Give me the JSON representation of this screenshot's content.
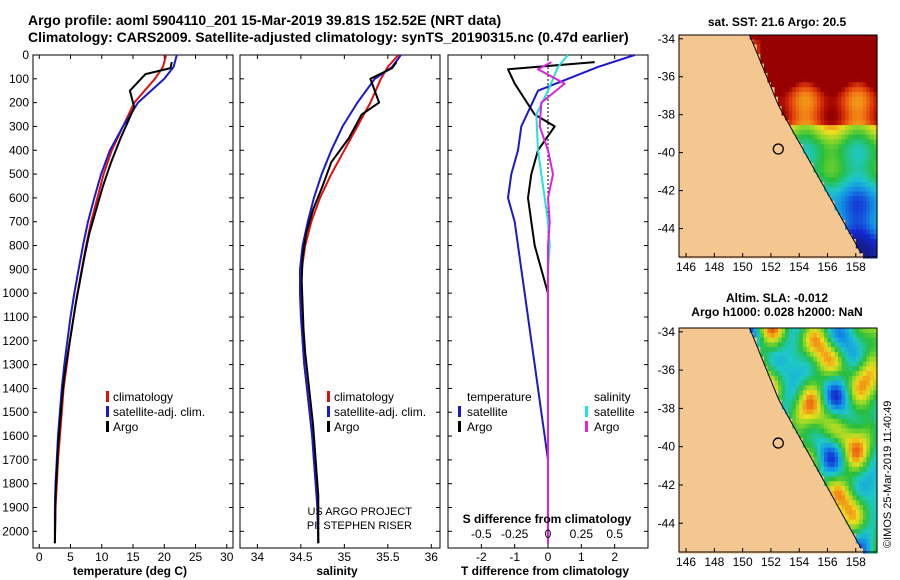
{
  "header": {
    "line1": "Argo profile: aoml 5904110_201 15-Mar-2019 39.81S 152.52E (NRT data)",
    "line2": "Climatology: CARS2009. Satellite-adjusted climatology: synTS_20190315.nc (0.47d earlier)"
  },
  "colors": {
    "climatology": "#e01010",
    "satellite": "#1a1acc",
    "argo": "#000000",
    "sat_salinity": "#22e0e0",
    "clim_salinity": "#dd22dd"
  },
  "chart_data": [
    {
      "type": "line",
      "id": "temperature",
      "xlabel": "temperature (deg C)",
      "ylabel": "",
      "xlim": [
        -1,
        31
      ],
      "ylim": [
        2070,
        0
      ],
      "xticks": [
        0,
        5,
        10,
        15,
        20,
        25,
        30
      ],
      "yticks": [
        0,
        100,
        200,
        300,
        400,
        500,
        600,
        700,
        800,
        900,
        1000,
        1100,
        1200,
        1300,
        1400,
        1500,
        1600,
        1700,
        1800,
        1900,
        2000
      ],
      "legend": [
        "climatology",
        "satellite-adj. clim.",
        "Argo"
      ],
      "series": [
        {
          "name": "climatology",
          "color": "#e01010",
          "x": [
            20.3,
            19.8,
            18.5,
            15.2,
            13.4,
            11.6,
            10.3,
            9.3,
            8.3,
            7.5,
            6.8,
            6.1,
            5.5,
            4.9,
            4.4,
            3.9,
            3.6,
            3.3,
            3.0,
            2.8,
            2.6,
            2.5
          ],
          "y": [
            0,
            50,
            100,
            200,
            300,
            400,
            500,
            600,
            700,
            800,
            900,
            1000,
            1100,
            1200,
            1300,
            1400,
            1500,
            1600,
            1700,
            1800,
            1900,
            2050
          ]
        },
        {
          "name": "satellite-adj. clim.",
          "color": "#1a1acc",
          "x": [
            22.0,
            21.5,
            20.0,
            15.8,
            13.4,
            11.3,
            9.9,
            8.8,
            7.8,
            7.0,
            6.3,
            5.6,
            5.0,
            4.5,
            4.0,
            3.6,
            3.3,
            3.0,
            2.8,
            2.6,
            2.5,
            2.5
          ],
          "y": [
            0,
            50,
            100,
            200,
            300,
            400,
            500,
            600,
            700,
            800,
            900,
            1000,
            1100,
            1200,
            1300,
            1400,
            1500,
            1600,
            1700,
            1800,
            1900,
            2050
          ]
        },
        {
          "name": "Argo",
          "color": "#000000",
          "x": [
            21.2,
            21.0,
            17.0,
            14.5,
            15.2,
            13.0,
            11.5,
            10.2,
            9.1,
            8.0,
            7.2,
            6.5,
            5.8,
            5.2,
            4.6,
            4.0,
            3.6,
            3.3,
            3.0,
            2.8,
            2.6,
            2.5
          ],
          "y": [
            30,
            55,
            80,
            150,
            220,
            350,
            450,
            550,
            650,
            750,
            850,
            950,
            1050,
            1150,
            1250,
            1350,
            1450,
            1550,
            1650,
            1750,
            1850,
            2050
          ]
        }
      ]
    },
    {
      "type": "line",
      "id": "salinity",
      "xlabel": "salinity",
      "ylabel": "",
      "xlim": [
        33.8,
        36.1
      ],
      "ylim": [
        2070,
        0
      ],
      "xticks": [
        34,
        34.5,
        35,
        35.5,
        36
      ],
      "legend": [
        "climatology",
        "satellite-adj. clim.",
        "Argo"
      ],
      "annotations": [
        "US ARGO PROJECT",
        "PI: STEPHEN RISER"
      ],
      "series": [
        {
          "name": "climatology",
          "color": "#e01010",
          "x": [
            35.62,
            35.5,
            35.42,
            35.3,
            35.15,
            35.0,
            34.85,
            34.72,
            34.62,
            34.55,
            34.51,
            34.5,
            34.51,
            34.52,
            34.54,
            34.57,
            34.6,
            34.63,
            34.65,
            34.67,
            34.69,
            34.7
          ],
          "y": [
            0,
            50,
            100,
            200,
            300,
            400,
            500,
            600,
            700,
            800,
            900,
            1000,
            1100,
            1200,
            1300,
            1400,
            1500,
            1600,
            1700,
            1800,
            1900,
            2050
          ]
        },
        {
          "name": "satellite-adj. clim.",
          "color": "#1a1acc",
          "x": [
            35.65,
            35.55,
            35.35,
            35.15,
            34.98,
            34.85,
            34.74,
            34.65,
            34.58,
            34.52,
            34.49,
            34.49,
            34.5,
            34.52,
            34.54,
            34.57,
            34.6,
            34.63,
            34.65,
            34.67,
            34.69,
            34.7
          ],
          "y": [
            0,
            50,
            100,
            200,
            300,
            400,
            500,
            600,
            700,
            800,
            900,
            1000,
            1100,
            1200,
            1300,
            1400,
            1500,
            1600,
            1700,
            1800,
            1900,
            2050
          ]
        },
        {
          "name": "Argo",
          "color": "#000000",
          "x": [
            35.6,
            35.55,
            35.3,
            35.4,
            35.2,
            35.05,
            34.85,
            34.75,
            34.64,
            34.56,
            34.52,
            34.51,
            34.52,
            34.53,
            34.55,
            34.58,
            34.61,
            34.64,
            34.66,
            34.68,
            34.7,
            34.7
          ],
          "y": [
            30,
            55,
            100,
            200,
            250,
            350,
            450,
            550,
            650,
            750,
            850,
            950,
            1050,
            1150,
            1250,
            1350,
            1450,
            1550,
            1650,
            1750,
            1850,
            2050
          ]
        }
      ]
    },
    {
      "type": "line",
      "id": "difference",
      "xlabel": "T difference from climatology",
      "xlabel2": "S difference from climatology",
      "xlim": [
        -3,
        3
      ],
      "ylim": [
        2070,
        0
      ],
      "xticks": [
        -2,
        -1,
        0,
        1,
        2
      ],
      "xticks2_labels": [
        "-0.5",
        "-0.25",
        "0",
        "0.25",
        "0.5"
      ],
      "legend_temperature": {
        "title": "temperature",
        "items": [
          "satellite",
          "Argo"
        ]
      },
      "legend_salinity": {
        "title": "salinity",
        "items": [
          "satellite",
          "Argo"
        ]
      },
      "series": [
        {
          "name": "T satellite",
          "color": "#1a1acc",
          "x": [
            2.6,
            1.5,
            -0.3,
            -0.8,
            -0.9,
            -1.1,
            -1.2,
            -1.0,
            -0.9,
            -0.8,
            -0.7,
            -0.6,
            -0.5,
            -0.4,
            -0.3,
            -0.2,
            -0.1,
            0.0,
            0.0,
            0.0,
            0.0
          ],
          "y": [
            0,
            50,
            150,
            300,
            400,
            500,
            600,
            700,
            800,
            900,
            1000,
            1100,
            1200,
            1300,
            1400,
            1500,
            1600,
            1700,
            1800,
            1900,
            2050
          ]
        },
        {
          "name": "T Argo",
          "color": "#000000",
          "x": [
            1.4,
            -1.2,
            -1.0,
            -0.4,
            0.2,
            -0.3,
            -0.5,
            -0.6,
            -0.5,
            -0.4,
            -0.2,
            0.0,
            0.0,
            0.0,
            0.0,
            0.0,
            0.0,
            0.0,
            0.0,
            0.0
          ],
          "y": [
            30,
            60,
            120,
            250,
            300,
            400,
            500,
            600,
            700,
            800,
            900,
            1000,
            1100,
            1200,
            1300,
            1500,
            1600,
            1700,
            1800,
            2050
          ]
        },
        {
          "name": "S satellite",
          "color": "#22e0e0",
          "x": [
            0.6,
            0.3,
            0.0,
            -0.35,
            -0.3,
            -0.2,
            -0.1,
            0.0,
            0.05,
            0.0,
            0.0,
            0.0,
            0.0,
            0.0,
            0.0,
            0.0,
            0.0
          ],
          "y": [
            0,
            50,
            150,
            250,
            400,
            500,
            600,
            700,
            800,
            900,
            1000,
            1200,
            1400,
            1600,
            1800,
            1900,
            2050
          ]
        },
        {
          "name": "S Argo",
          "color": "#dd22dd",
          "x": [
            0.1,
            -0.3,
            0.5,
            -0.2,
            -0.25,
            0.0,
            0.15,
            0.0,
            0.05,
            0.0,
            0.0,
            0.0,
            0.0,
            0.0,
            0.0
          ],
          "y": [
            30,
            60,
            120,
            200,
            300,
            400,
            500,
            600,
            700,
            800,
            1000,
            1200,
            1500,
            1800,
            2050
          ]
        }
      ]
    },
    {
      "type": "heatmap",
      "id": "sst_map",
      "title": "sat. SST: 21.6 Argo: 20.5",
      "xticks": [
        146,
        148,
        150,
        152,
        154,
        156,
        158
      ],
      "yticks": [
        -34,
        -36,
        -38,
        -40,
        -42,
        -44
      ],
      "xlim": [
        145.5,
        159.5
      ],
      "ylim": [
        -45.5,
        -33.8
      ],
      "float_lon": 152.52,
      "float_lat": -39.81
    },
    {
      "type": "heatmap",
      "id": "sla_map",
      "title_line1": "Altim. SLA: -0.012",
      "title_line2": "Argo h1000: 0.028 h2000: NaN",
      "xticks": [
        146,
        148,
        150,
        152,
        154,
        156,
        158
      ],
      "yticks": [
        -34,
        -36,
        -38,
        -40,
        -42,
        -44
      ],
      "xlim": [
        145.5,
        159.5
      ],
      "ylim": [
        -45.5,
        -33.8
      ],
      "float_lon": 152.52,
      "float_lat": -39.81
    }
  ],
  "credit": "©IMOS 25-Mar-2019 11:40:49"
}
